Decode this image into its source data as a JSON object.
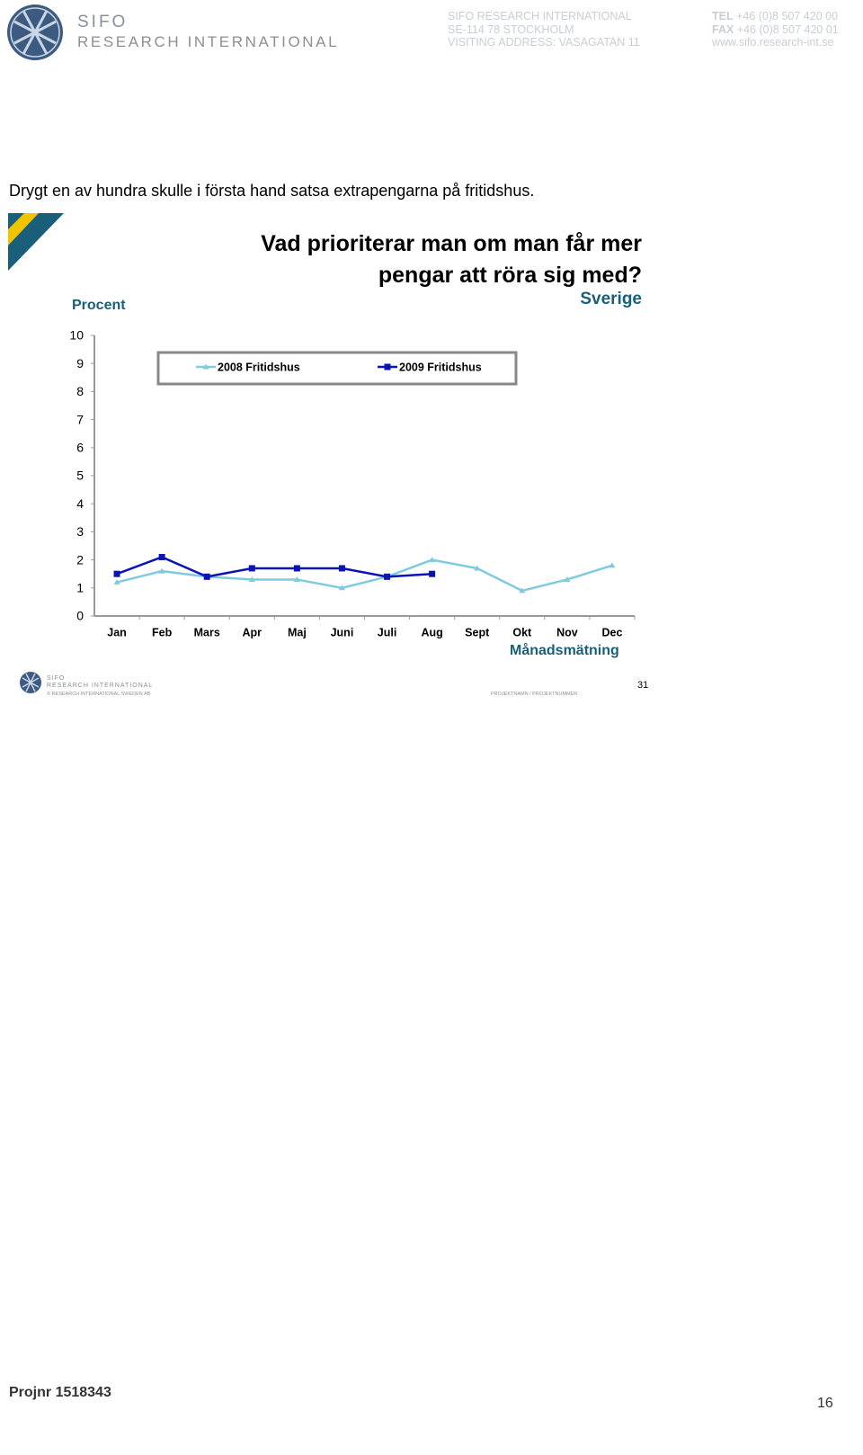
{
  "header": {
    "logo": {
      "line1": "SIFO",
      "line2": "RESEARCH INTERNATIONAL"
    },
    "address": [
      "SIFO RESEARCH INTERNATIONAL",
      "SE-114 78 STOCKHOLM",
      "VISITING ADDRESS: VASAGATAN 11"
    ],
    "contact": [
      {
        "label": "TEL",
        "value": "+46 (0)8 507 420 00"
      },
      {
        "label": "FAX",
        "value": "+46 (0)8 507 420 01"
      },
      {
        "label": "",
        "value": "www.sifo.research-int.se"
      }
    ]
  },
  "intro": "Drygt en av hundra skulle i första hand satsa extrapengarna på fritidshus.",
  "chart_data": {
    "type": "line",
    "title": "Vad prioriterar man om man får mer pengar att röra sig med?",
    "subtitle": "Sverige",
    "y_label": "Procent",
    "x_label": "Månadsmätning",
    "categories": [
      "Jan",
      "Feb",
      "Mars",
      "Apr",
      "Maj",
      "Juni",
      "Juli",
      "Aug",
      "Sept",
      "Okt",
      "Nov",
      "Dec"
    ],
    "series": [
      {
        "name": "2008 Fritidshus",
        "color": "#7ecbe0",
        "marker": "triangle",
        "values": [
          1.2,
          1.6,
          1.4,
          1.3,
          1.3,
          1.0,
          1.4,
          2.0,
          1.7,
          0.9,
          1.3,
          1.8
        ]
      },
      {
        "name": "2009 Fritidshus",
        "color": "#0a14b4",
        "marker": "square",
        "values": [
          1.5,
          2.1,
          1.4,
          1.7,
          1.7,
          1.7,
          1.4,
          1.5,
          null,
          null,
          null,
          null
        ]
      }
    ],
    "ylim": [
      0,
      10
    ],
    "yticks": [
      0,
      1,
      2,
      3,
      4,
      5,
      6,
      7,
      8,
      9,
      10
    ],
    "grid": false,
    "legend": "top"
  },
  "slide_footer": {
    "logo": {
      "line1": "SIFO",
      "line2": "RESEARCH INTERNATIONAL"
    },
    "copyright": "© RESEARCH INTERNATIONAL SWEDEN AB",
    "project": "PROJEKTNAMN / PROJEKTNUMMER",
    "slide_number": "31"
  },
  "footer": {
    "project_number": "Projnr 1518343",
    "page_number": "16"
  }
}
